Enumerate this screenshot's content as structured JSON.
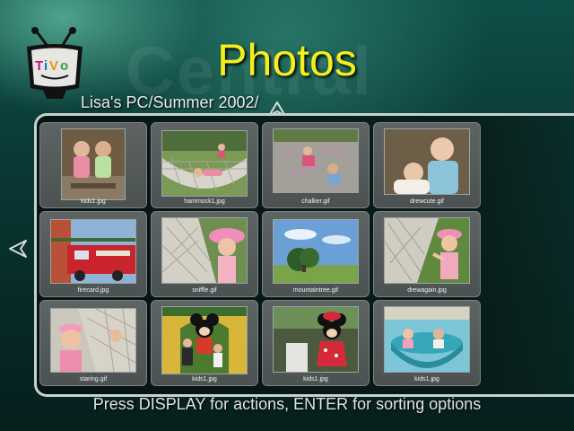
{
  "app": {
    "brand": "TiVo",
    "watermark": "Central"
  },
  "header": {
    "title": "Photos",
    "breadcrumb": "Lisa's PC/Summer 2002/"
  },
  "nav": {
    "up_icon": "up-arrow-icon",
    "left_icon": "left-arrow-icon"
  },
  "photos": [
    {
      "caption": "kids1.jpg"
    },
    {
      "caption": "hammock1.jpg"
    },
    {
      "caption": "chalker.gif"
    },
    {
      "caption": "drewcute.gif"
    },
    {
      "caption": "firecard.jpg"
    },
    {
      "caption": "sniffle.gif"
    },
    {
      "caption": "mountaintree.gif"
    },
    {
      "caption": "drewagain.jpg"
    },
    {
      "caption": "staring.gif"
    },
    {
      "caption": "kids1.jpg"
    },
    {
      "caption": "kids1.jpg"
    },
    {
      "caption": "kids1.jpg"
    }
  ],
  "footer": {
    "hint": "Press DISPLAY for actions, ENTER for sorting options"
  },
  "colors": {
    "title": "#f3ee1c",
    "panel_border": "#c6d2d0",
    "background": "#0a3a36"
  }
}
